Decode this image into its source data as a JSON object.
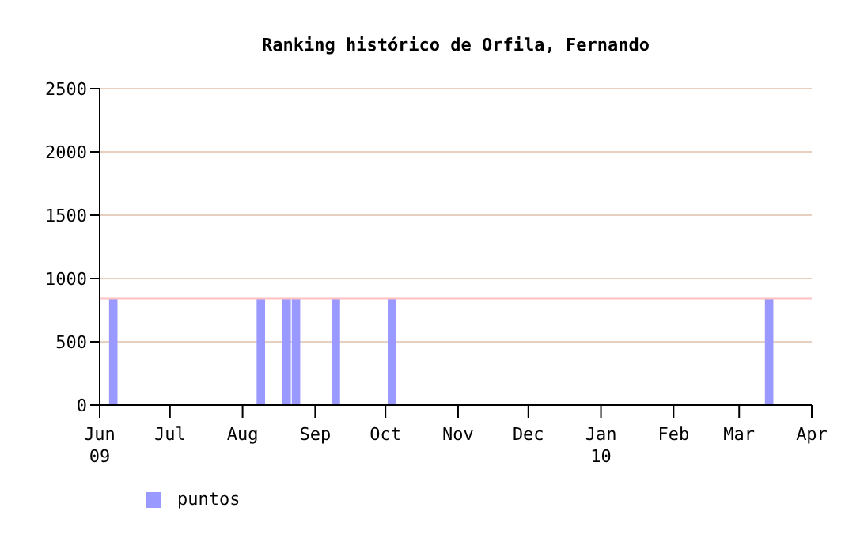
{
  "chart_data": {
    "type": "bar",
    "title": "Ranking histórico de Orfila, Fernando",
    "x": [
      "2009-06-07",
      "2009-08-09",
      "2009-08-20",
      "2009-08-24",
      "2009-09-10",
      "2009-10-04",
      "2010-03-14"
    ],
    "series": [
      {
        "name": "puntos",
        "color": "#9999ff",
        "values": [
          840,
          840,
          840,
          840,
          840,
          840,
          840
        ]
      }
    ],
    "xlim": [
      "2009-06",
      "2010-04"
    ],
    "xticks": [
      {
        "value": "2009-06",
        "label": "Jun\n09"
      },
      {
        "value": "2009-07",
        "label": "Jul"
      },
      {
        "value": "2009-08",
        "label": "Aug"
      },
      {
        "value": "2009-09",
        "label": "Sep"
      },
      {
        "value": "2009-10",
        "label": "Oct"
      },
      {
        "value": "2009-11",
        "label": "Nov"
      },
      {
        "value": "2009-12",
        "label": "Dec"
      },
      {
        "value": "2010-01",
        "label": "Jan\n10"
      },
      {
        "value": "2010-02",
        "label": "Feb"
      },
      {
        "value": "2010-03",
        "label": "Mar"
      },
      {
        "value": "2010-04",
        "label": "Apr"
      }
    ],
    "ylim": [
      0,
      2500
    ],
    "yticks": [
      0,
      500,
      1000,
      1500,
      2000,
      2500
    ],
    "ref_lines": [
      {
        "axis": "y",
        "value": 840,
        "color": "#ffc0c0"
      }
    ],
    "grid": "y",
    "legend": "bottom left"
  }
}
